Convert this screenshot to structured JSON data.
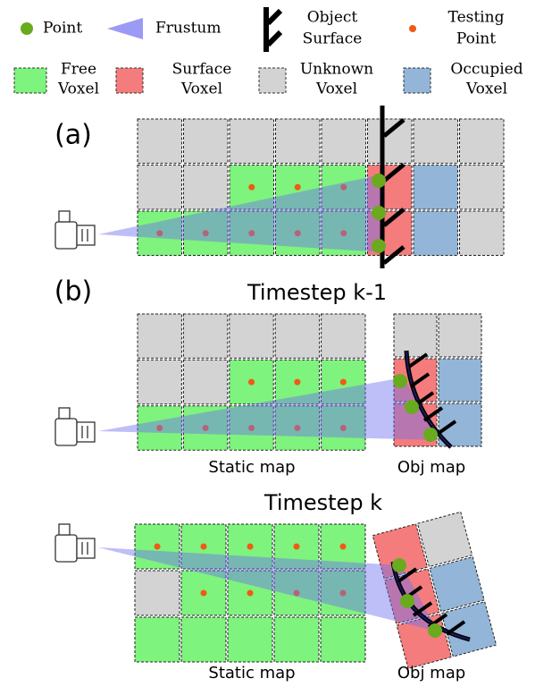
{
  "legend": [
    {
      "lines": [
        "Point"
      ]
    },
    {
      "lines": [
        "Frustum"
      ]
    },
    {
      "lines": [
        "Object",
        "Surface"
      ]
    },
    {
      "lines": [
        "Testing",
        "Point"
      ]
    },
    {
      "lines": [
        "Free",
        "Voxel"
      ]
    },
    {
      "lines": [
        "Surface",
        "Voxel"
      ]
    },
    {
      "lines": [
        "Unknown",
        "Voxel"
      ]
    },
    {
      "lines": [
        "Occupied",
        "Voxel"
      ]
    }
  ],
  "panel_a": {
    "label": "(a)"
  },
  "panel_b": {
    "label": "(b)",
    "top": {
      "title": "Timestep k-1",
      "static_label": "Static map",
      "obj_label": "Obj map"
    },
    "bottom": {
      "title": "Timestep k",
      "static_label": "Static map",
      "obj_label": "Obj map"
    }
  }
}
